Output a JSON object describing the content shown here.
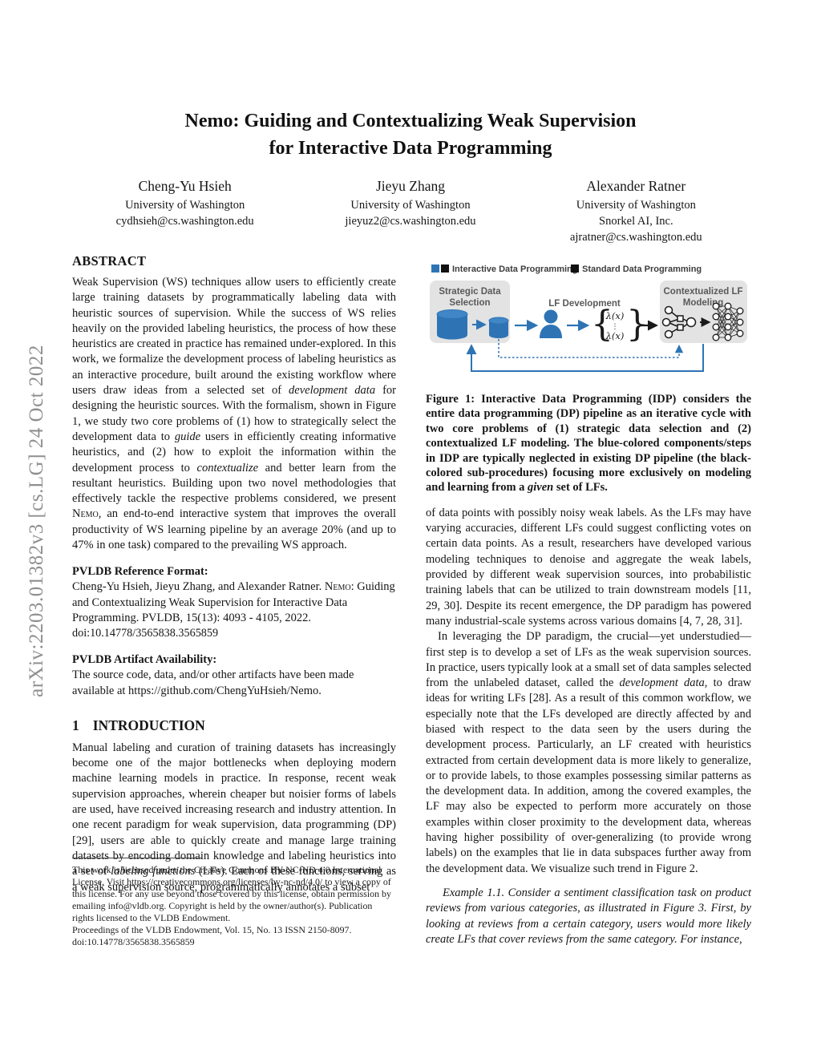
{
  "palette": {
    "accent_blue": "#2E74B5",
    "box_gray": "#e3e3e3",
    "figure_label_gray": "#595959",
    "stamp_gray": "#8f8f8f"
  },
  "arxiv_stamp": "arXiv:2203.01382v3  [cs.LG]  24 Oct 2022",
  "title": {
    "line1": "Nemo: Guiding and Contextualizing Weak Supervision",
    "line2": "for Interactive Data Programming"
  },
  "authors": [
    {
      "name": "Cheng-Yu Hsieh",
      "affil1": "University of Washington",
      "email": "cydhsieh@cs.washington.edu"
    },
    {
      "name": "Jieyu Zhang",
      "affil1": "University of Washington",
      "email": "jieyuz2@cs.washington.edu"
    },
    {
      "name": "Alexander Ratner",
      "affil1": "University of Washington",
      "affil2": "Snorkel AI, Inc.",
      "email": "ajratner@cs.washington.edu"
    }
  ],
  "left": {
    "abstract_heading": "ABSTRACT",
    "abstract": [
      {
        "t": "Weak Supervision (WS) techniques allow users to efficiently create large training datasets by programmatically labeling data with heuristic sources of supervision. While the success of WS relies heavily on the provided labeling heuristics, the process of how these heuristics are created in practice has remained under-explored. In this work, we formalize the development process of labeling heuristics as an interactive procedure, built around the existing workflow where users draw ideas from a selected set of "
      },
      {
        "t": "development data",
        "i": true
      },
      {
        "t": " for designing the heuristic sources. With the formalism, shown in Figure 1, we study two core problems of (1) how to strategically select the development data to "
      },
      {
        "t": "guide",
        "i": true
      },
      {
        "t": " users in efficiently creating informative heuristics, and (2) how to exploit the information within the development process to "
      },
      {
        "t": "contextualize",
        "i": true
      },
      {
        "t": " and better learn from the resultant heuristics. Building upon two novel methodologies that effectively tackle the respective problems considered, we present "
      },
      {
        "t": "Nemo",
        "sc": true
      },
      {
        "t": ", an end-to-end interactive system that improves the overall productivity of WS learning pipeline by an average 20% (and up to 47% in one task) compared to the prevailing WS approach."
      }
    ],
    "ref_heading": "PVLDB Reference Format:",
    "ref_text": [
      {
        "t": "Cheng-Yu Hsieh, Jieyu Zhang, and Alexander Ratner. "
      },
      {
        "t": "Nemo",
        "sc": true
      },
      {
        "t": ": Guiding and Contextualizing Weak Supervision for Interactive Data Programming. PVLDB, 15(13): 4093 - 4105, 2022."
      }
    ],
    "ref_doi": "doi:10.14778/3565838.3565859",
    "artifact_heading": "PVLDB Artifact Availability:",
    "artifact_text": "The source code, data, and/or other artifacts have been made available at https://github.com/ChengYuHsieh/Nemo.",
    "intro_number": "1",
    "intro_heading": "INTRODUCTION",
    "intro": [
      {
        "t": "Manual labeling and curation of training datasets has increasingly become one of the major bottlenecks when deploying modern machine learning models in practice. In response, recent weak supervision approaches, wherein cheaper but noisier forms of labels are used, have received increasing research and industry attention. In one recent paradigm for weak supervision, data programming (DP) [29], users are able to quickly create and manage large training datasets by encoding domain knowledge and labeling heuristics into a set of "
      },
      {
        "t": "labeling functions",
        "i": true
      },
      {
        "t": " (LFs). Each of these functions, serving as a weak supervision source, programmatically annotates a subset"
      }
    ],
    "footnote_license": "This work is licensed under the Creative Commons BY-NC-ND 4.0 International License. Visit https://creativecommons.org/licenses/by-nc-nd/4.0/ to view a copy of this license. For any use beyond those covered by this license, obtain permission by emailing info@vldb.org. Copyright is held by the owner/author(s). Publication rights licensed to the VLDB Endowment.",
    "footnote_proceedings": "Proceedings of the VLDB Endowment, Vol. 15, No. 13 ISSN 2150-8097.",
    "footnote_doi": "doi:10.14778/3565838.3565859"
  },
  "figure1": {
    "legend": [
      {
        "label": "Interactive Data Programming"
      },
      {
        "label": "Standard Data Programming"
      }
    ],
    "strategic_line1": "Strategic Data",
    "strategic_line2": "Selection",
    "lf_dev_label": "LF Development",
    "context_line1": "Contextualized LF",
    "context_line2": "Modeling",
    "brace_open": "{",
    "brace_close": "}",
    "lambda_top": "λ(x)",
    "lambda_dots": "⋮",
    "lambda_bottom": "λ(x)"
  },
  "right": {
    "caption": [
      {
        "t": "Figure 1: Interactive Data Programming (IDP) considers the entire data programming (DP) pipeline as an iterative cycle with two core problems of (1) strategic data selection and (2) contextualized LF modeling. The blue-colored components/steps in IDP are typically neglected in existing DP pipeline (the black-colored sub-procedures) focusing more exclusively on modeling and learning from a "
      },
      {
        "t": "given",
        "i": true
      },
      {
        "t": " set of LFs."
      }
    ],
    "para1": "of data points with possibly noisy weak labels. As the LFs may have varying accuracies, different LFs could suggest conflicting votes on certain data points. As a result, researchers have developed various modeling techniques to denoise and aggregate the weak labels, provided by different weak supervision sources, into probabilistic training labels that can be utilized to train downstream models [11, 29, 30]. Despite its recent emergence, the DP paradigm has powered many industrial-scale systems across various domains [4, 7, 28, 31].",
    "para2": [
      {
        "t": "In leveraging the DP paradigm, the crucial—yet understudied—first step is to develop a set of LFs as the weak supervision sources. In practice, users typically look at a small set of data samples selected from the unlabeled dataset, called the "
      },
      {
        "t": "development data",
        "i": true
      },
      {
        "t": ", to draw ideas for writing LFs [28]. As a result of this common workflow, we especially note that the LFs developed are directly affected by and biased with respect to the data seen by the users during the development process. Particularly, an LF created with heuristics extracted from certain development data is more likely to generalize, or to provide labels, to those examples possessing similar patterns as the development data. In addition, among the covered examples, the LF may also be expected to perform more accurately on those examples within closer proximity to the development data, whereas having higher possibility of over-generalizing (to provide wrong labels) on the examples that lie in data subspaces further away from the development data. We visualize such trend in Figure 2."
      }
    ],
    "example": "Example 1.1.  Consider a sentiment classification task on product reviews from various categories, as illustrated in Figure 3. First, by looking at reviews from a certain category, users would more likely create LFs that cover reviews from the same category. For instance,"
  }
}
